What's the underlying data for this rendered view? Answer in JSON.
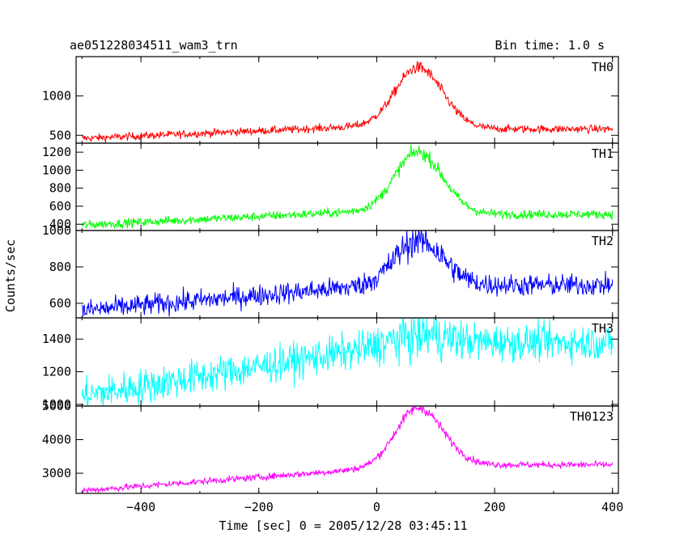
{
  "header": {
    "title": "ae051228034511_wam3_trn",
    "bin_time": "Bin time: 1.0 s"
  },
  "chart_data": {
    "type": "line",
    "xlabel": "Time [sec] 0 = 2005/12/28 03:45:11",
    "ylabel": "Counts/sec",
    "xlim": [
      -510,
      410
    ],
    "xticks": [
      -400,
      -200,
      0,
      200,
      400
    ],
    "x_tick_labels": [
      "−400",
      "−200",
      "0",
      "200",
      "400"
    ],
    "panels": [
      {
        "name": "TH0",
        "color": "#ff0000",
        "ylim": [
          400,
          1500
        ],
        "yticks": [
          500,
          1000
        ],
        "ytick_labels": [
          "500",
          "1000"
        ],
        "baseline_start": 460,
        "baseline_end": 620,
        "post_level": 580,
        "peak": 1380,
        "peak_time": 70,
        "noise": 25
      },
      {
        "name": "TH1",
        "color": "#00ff00",
        "ylim": [
          330,
          1300
        ],
        "yticks": [
          400,
          600,
          800,
          1000,
          1200
        ],
        "ytick_labels": [
          "400",
          "600",
          "800",
          "1000",
          "1200"
        ],
        "baseline_start": 390,
        "baseline_end": 550,
        "post_level": 510,
        "peak": 1220,
        "peak_time": 70,
        "noise": 25
      },
      {
        "name": "TH2",
        "color": "#0000ff",
        "ylim": [
          520,
          1000
        ],
        "yticks": [
          600,
          800,
          1000
        ],
        "ytick_labels": [
          "600",
          "800",
          "1000"
        ],
        "baseline_start": 560,
        "baseline_end": 700,
        "post_level": 700,
        "peak": 950,
        "peak_time": 70,
        "noise": 30
      },
      {
        "name": "TH3",
        "color": "#00ffff",
        "ylim": [
          990,
          1530
        ],
        "yticks": [
          1000,
          1200,
          1400
        ],
        "ytick_labels": [
          "1000",
          "1200",
          "1400"
        ],
        "baseline_start": 1050,
        "baseline_end": 1350,
        "post_level": 1380,
        "peak": 1420,
        "peak_time": 70,
        "noise": 55
      },
      {
        "name": "TH0123",
        "color": "#ff00ff",
        "ylim": [
          2400,
          5000
        ],
        "yticks": [
          3000,
          4000,
          5000
        ],
        "ytick_labels": [
          "3000",
          "4000",
          "5000"
        ],
        "baseline_start": 2480,
        "baseline_end": 3150,
        "post_level": 3250,
        "peak": 4900,
        "peak_time": 70,
        "noise": 50
      }
    ],
    "series_range": [
      -500,
      400
    ],
    "time_step": 1
  }
}
